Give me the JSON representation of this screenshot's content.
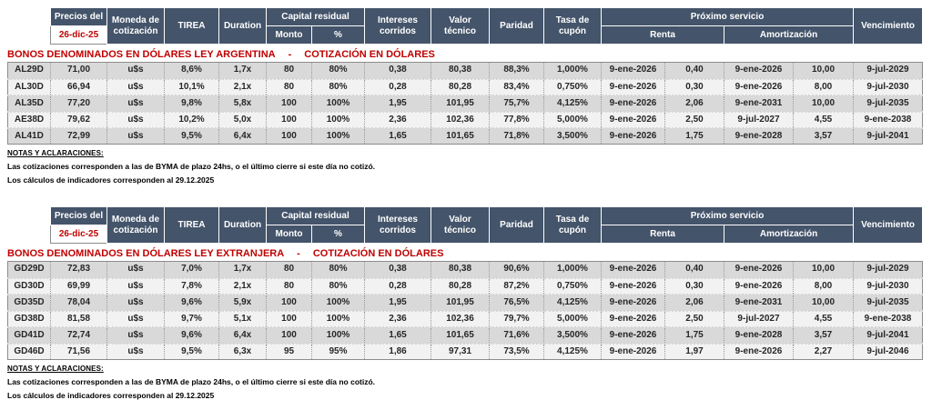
{
  "colors": {
    "header_bg": "#44546A",
    "header_text": "#FFFFFF",
    "accent_red": "#C00000",
    "row_dark": "#D9D9D9",
    "row_light": "#F2F2F2"
  },
  "titles_separator": "-",
  "header": {
    "precios_del": "Precios del",
    "fecha": "26-dic-25",
    "moneda": "Moneda de cotización",
    "tirea": "TIREA",
    "duration": "Duration",
    "capital_residual": "Capital residual",
    "monto": "Monto",
    "pct": "%",
    "intereses": "Intereses corridos",
    "valor_tecnico": "Valor técnico",
    "paridad": "Paridad",
    "tasa_cupon": "Tasa de cupón",
    "proximo_servicio": "Próximo servicio",
    "renta": "Renta",
    "amortizacion": "Amortización",
    "vencimiento": "Vencimiento"
  },
  "sections": [
    {
      "title": "BONOS DENOMINADOS EN DÓLARES LEY ARGENTINA",
      "subtitle": "COTIZACIÓN EN DÓLARES",
      "rows": [
        [
          "AL29D",
          "71,00",
          "u$s",
          "8,6%",
          "1,7x",
          "80",
          "80%",
          "0,38",
          "80,38",
          "88,3%",
          "1,000%",
          "9-ene-2026",
          "0,40",
          "9-ene-2026",
          "10,00",
          "9-jul-2029"
        ],
        [
          "AL30D",
          "66,94",
          "u$s",
          "10,1%",
          "2,1x",
          "80",
          "80%",
          "0,28",
          "80,28",
          "83,4%",
          "0,750%",
          "9-ene-2026",
          "0,30",
          "9-ene-2026",
          "8,00",
          "9-jul-2030"
        ],
        [
          "AL35D",
          "77,20",
          "u$s",
          "9,8%",
          "5,8x",
          "100",
          "100%",
          "1,95",
          "101,95",
          "75,7%",
          "4,125%",
          "9-ene-2026",
          "2,06",
          "9-ene-2031",
          "10,00",
          "9-jul-2035"
        ],
        [
          "AE38D",
          "79,62",
          "u$s",
          "10,2%",
          "5,0x",
          "100",
          "100%",
          "2,36",
          "102,36",
          "77,8%",
          "5,000%",
          "9-ene-2026",
          "2,50",
          "9-jul-2027",
          "4,55",
          "9-ene-2038"
        ],
        [
          "AL41D",
          "72,99",
          "u$s",
          "9,5%",
          "6,4x",
          "100",
          "100%",
          "1,65",
          "101,65",
          "71,8%",
          "3,500%",
          "9-ene-2026",
          "1,75",
          "9-ene-2028",
          "3,57",
          "9-jul-2041"
        ]
      ],
      "notes_title": "NOTAS Y ACLARACIONES:",
      "notes": [
        "Las cotizaciones corresponden a las de BYMA de plazo 24hs, o el último cierre si este día no cotizó.",
        "Los cálculos de indicadores corresponden al 29.12.2025"
      ]
    },
    {
      "title": "BONOS DENOMINADOS EN DÓLARES LEY EXTRANJERA",
      "subtitle": "COTIZACIÓN EN DÓLARES",
      "rows": [
        [
          "GD29D",
          "72,83",
          "u$s",
          "7,0%",
          "1,7x",
          "80",
          "80%",
          "0,38",
          "80,38",
          "90,6%",
          "1,000%",
          "9-ene-2026",
          "0,40",
          "9-ene-2026",
          "10,00",
          "9-jul-2029"
        ],
        [
          "GD30D",
          "69,99",
          "u$s",
          "7,8%",
          "2,1x",
          "80",
          "80%",
          "0,28",
          "80,28",
          "87,2%",
          "0,750%",
          "9-ene-2026",
          "0,30",
          "9-ene-2026",
          "8,00",
          "9-jul-2030"
        ],
        [
          "GD35D",
          "78,04",
          "u$s",
          "9,6%",
          "5,9x",
          "100",
          "100%",
          "1,95",
          "101,95",
          "76,5%",
          "4,125%",
          "9-ene-2026",
          "2,06",
          "9-ene-2031",
          "10,00",
          "9-jul-2035"
        ],
        [
          "GD38D",
          "81,58",
          "u$s",
          "9,7%",
          "5,1x",
          "100",
          "100%",
          "2,36",
          "102,36",
          "79,7%",
          "5,000%",
          "9-ene-2026",
          "2,50",
          "9-jul-2027",
          "4,55",
          "9-ene-2038"
        ],
        [
          "GD41D",
          "72,74",
          "u$s",
          "9,6%",
          "6,4x",
          "100",
          "100%",
          "1,65",
          "101,65",
          "71,6%",
          "3,500%",
          "9-ene-2026",
          "1,75",
          "9-ene-2028",
          "3,57",
          "9-jul-2041"
        ],
        [
          "GD46D",
          "71,56",
          "u$s",
          "9,5%",
          "6,3x",
          "95",
          "95%",
          "1,86",
          "97,31",
          "73,5%",
          "4,125%",
          "9-ene-2026",
          "1,97",
          "9-ene-2026",
          "2,27",
          "9-jul-2046"
        ]
      ],
      "notes_title": "NOTAS Y ACLARACIONES:",
      "notes": [
        "Las cotizaciones corresponden a las de BYMA de plazo 24hs, o el último cierre si este día no cotizó.",
        "Los cálculos de indicadores corresponden al 29.12.2025"
      ]
    }
  ]
}
